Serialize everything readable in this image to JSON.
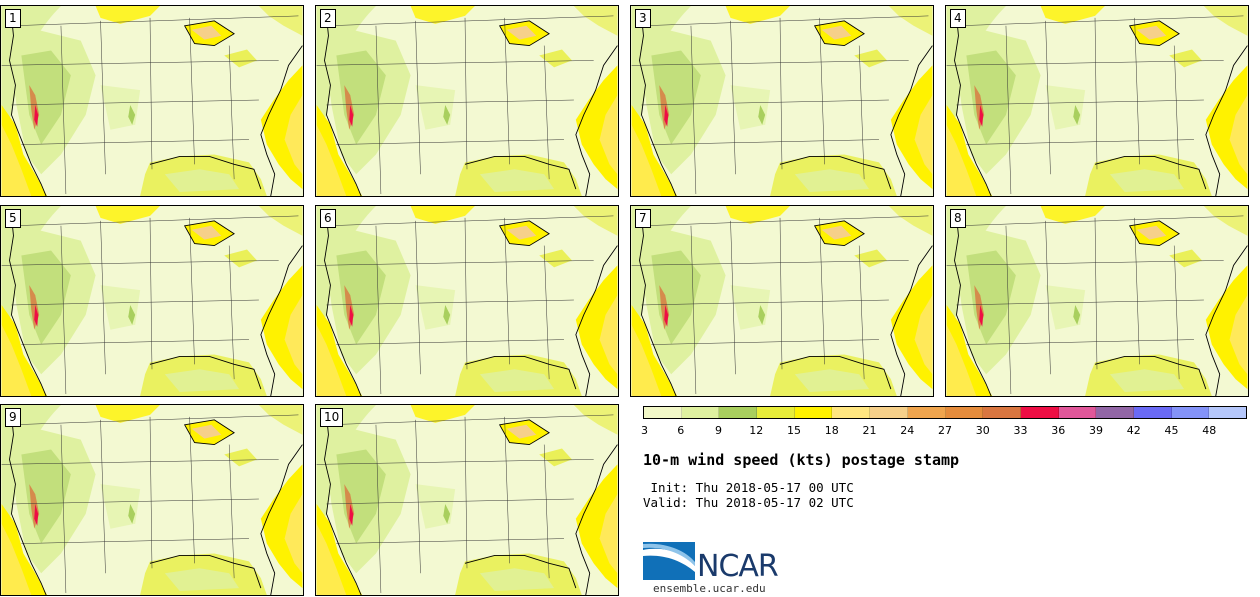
{
  "stamps": [
    {
      "label": "1"
    },
    {
      "label": "2"
    },
    {
      "label": "3"
    },
    {
      "label": "4"
    },
    {
      "label": "5"
    },
    {
      "label": "6"
    },
    {
      "label": "7"
    },
    {
      "label": "8"
    },
    {
      "label": "9"
    },
    {
      "label": "10"
    }
  ],
  "colorbar": {
    "colors": [
      "#f2f8c8",
      "#dff1a0",
      "#a9cf5e",
      "#e7ed3a",
      "#fff200",
      "#ffe680",
      "#f6d08a",
      "#f0a54e",
      "#e58c3c",
      "#d97640",
      "#ee0e44",
      "#e1579a",
      "#9266a6",
      "#6a6af5",
      "#8493f8",
      "#b5c7fb"
    ],
    "ticks": [
      "3",
      "6",
      "9",
      "12",
      "15",
      "18",
      "21",
      "24",
      "27",
      "30",
      "33",
      "36",
      "39",
      "42",
      "45",
      "48"
    ]
  },
  "title": "10-m wind speed (kts) postage stamp",
  "init": " Init: Thu 2018-05-17 00 UTC",
  "valid": "Valid: Thu 2018-05-17 02 UTC",
  "logo": {
    "text": "NCAR",
    "url": "ensemble.ucar.edu"
  }
}
